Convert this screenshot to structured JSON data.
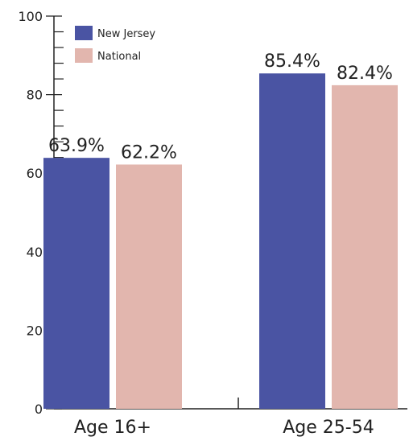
{
  "chart_data": {
    "type": "bar",
    "categories": [
      "Age 16+",
      "Age 25-54"
    ],
    "series": [
      {
        "name": "New Jersey",
        "values": [
          63.9,
          85.4
        ],
        "labels": [
          "63.9%",
          "85.4%"
        ]
      },
      {
        "name": "National",
        "values": [
          62.2,
          82.4
        ],
        "labels": [
          "62.2%",
          "82.4%"
        ]
      }
    ],
    "title": "",
    "xlabel": "",
    "ylabel": "",
    "ylim": [
      0,
      100
    ],
    "yticks": [
      0,
      20,
      40,
      60,
      80,
      100
    ],
    "grid": false,
    "legend_position": "top-left"
  },
  "colors": {
    "New Jersey": "#4a54a3",
    "National": "#e2b6ae",
    "axis": "#222222"
  }
}
